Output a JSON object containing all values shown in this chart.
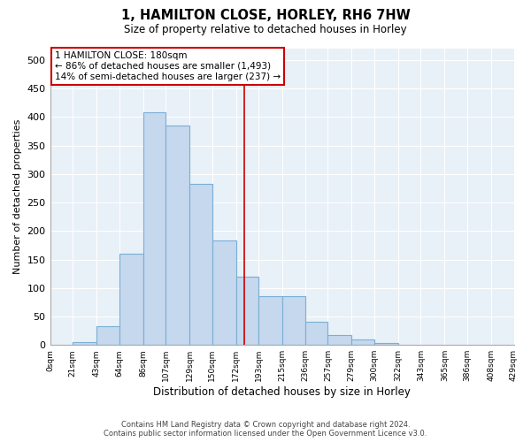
{
  "title": "1, HAMILTON CLOSE, HORLEY, RH6 7HW",
  "subtitle": "Size of property relative to detached houses in Horley",
  "xlabel": "Distribution of detached houses by size in Horley",
  "ylabel": "Number of detached properties",
  "footer_line1": "Contains HM Land Registry data © Crown copyright and database right 2024.",
  "footer_line2": "Contains public sector information licensed under the Open Government Licence v3.0.",
  "bar_color": "#c5d8ee",
  "bar_edge_color": "#7aafd4",
  "bg_color": "#e8f0f8",
  "grid_color": "#ffffff",
  "vline_color": "#cc0000",
  "annotation_box_edge": "#cc0000",
  "annotation_text_line1": "1 HAMILTON CLOSE: 180sqm",
  "annotation_text_line2": "← 86% of detached houses are smaller (1,493)",
  "annotation_text_line3": "14% of semi-detached houses are larger (237) →",
  "bin_edges": [
    0,
    21,
    43,
    64,
    86,
    107,
    129,
    150,
    172,
    193,
    215,
    236,
    257,
    279,
    300,
    322,
    343,
    365,
    386,
    408,
    429
  ],
  "bin_counts": [
    0,
    5,
    33,
    160,
    408,
    385,
    282,
    184,
    120,
    85,
    85,
    40,
    18,
    10,
    3,
    0,
    0,
    0,
    0,
    0
  ],
  "vline_x": 180,
  "ylim": [
    0,
    520
  ],
  "yticks": [
    0,
    50,
    100,
    150,
    200,
    250,
    300,
    350,
    400,
    450,
    500
  ],
  "tick_labels": [
    "0sqm",
    "21sqm",
    "43sqm",
    "64sqm",
    "86sqm",
    "107sqm",
    "129sqm",
    "150sqm",
    "172sqm",
    "193sqm",
    "215sqm",
    "236sqm",
    "257sqm",
    "279sqm",
    "300sqm",
    "322sqm",
    "343sqm",
    "365sqm",
    "386sqm",
    "408sqm",
    "429sqm"
  ]
}
